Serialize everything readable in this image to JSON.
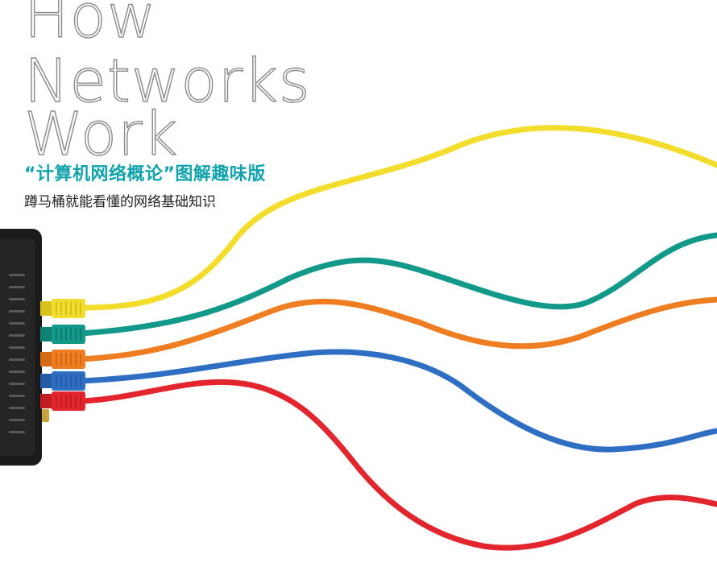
{
  "cover": {
    "title_lines": [
      "How",
      "Networks",
      "Work"
    ],
    "subtitle": "“计算机网络概论”图解趣味版",
    "tagline": "蹲马桶就能看懂的网络基础知识"
  },
  "colors": {
    "title_outline": "#8a8a8a",
    "subtitle": "#12a3ac",
    "tagline": "#222222",
    "router_body": "#1b1b1b",
    "cable_yellow": "#f2dd2c",
    "cable_teal": "#12998a",
    "cable_orange": "#ef7d22",
    "cable_blue": "#2f6fc3",
    "cable_red": "#e3262d"
  },
  "cables": [
    {
      "name": "yellow",
      "color": "#f2dd2c"
    },
    {
      "name": "teal",
      "color": "#12998a"
    },
    {
      "name": "orange",
      "color": "#ef7d22"
    },
    {
      "name": "blue",
      "color": "#2f6fc3"
    },
    {
      "name": "red",
      "color": "#e3262d"
    }
  ]
}
